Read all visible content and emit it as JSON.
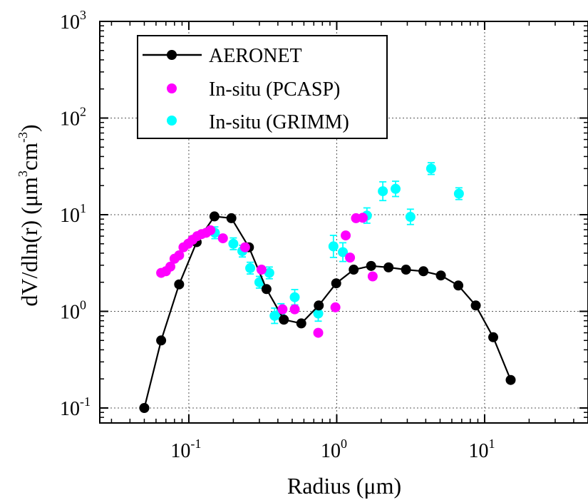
{
  "chart_data": {
    "type": "scatter",
    "title": "",
    "xlabel": "Radius  (μm)",
    "ylabel": {
      "prefix": "dV/dln(r)  (μm",
      "sup1": "3",
      "mid": "cm",
      "sup2": "-3",
      "suffix": ")"
    },
    "x_scale": "log",
    "y_scale": "log",
    "xlim": [
      0.025,
      50
    ],
    "ylim": [
      0.07,
      1000
    ],
    "grid": true,
    "legend_position": "top-left",
    "x_ticks": [
      {
        "value": 0.1,
        "base": "10",
        "exp": "-1"
      },
      {
        "value": 1,
        "base": "10",
        "exp": "0"
      },
      {
        "value": 10,
        "base": "10",
        "exp": "1"
      }
    ],
    "y_ticks": [
      {
        "value": 0.1,
        "base": "10",
        "exp": "-1"
      },
      {
        "value": 1,
        "base": "10",
        "exp": "0"
      },
      {
        "value": 10,
        "base": "10",
        "exp": "1"
      },
      {
        "value": 100,
        "base": "10",
        "exp": "2"
      },
      {
        "value": 1000,
        "base": "10",
        "exp": "3"
      }
    ],
    "series": [
      {
        "name": "AERONET",
        "style": "line-marker",
        "color": "#000000",
        "x": [
          0.05,
          0.065,
          0.086,
          0.113,
          0.149,
          0.194,
          0.255,
          0.335,
          0.439,
          0.576,
          0.756,
          0.992,
          1.302,
          1.708,
          2.241,
          2.94,
          3.857,
          5.06,
          6.641,
          8.713,
          11.432,
          15.0
        ],
        "y": [
          0.1,
          0.5,
          1.9,
          5.2,
          9.6,
          9.2,
          4.6,
          1.7,
          0.82,
          0.75,
          1.15,
          1.95,
          2.7,
          2.95,
          2.85,
          2.7,
          2.6,
          2.35,
          1.85,
          1.15,
          0.54,
          0.195
        ]
      },
      {
        "name": "In-situ (PCASP)",
        "style": "marker",
        "color": "#ff00ff",
        "x": [
          0.065,
          0.07,
          0.075,
          0.08,
          0.086,
          0.092,
          0.099,
          0.106,
          0.114,
          0.122,
          0.131,
          0.14,
          0.17,
          0.24,
          0.31,
          0.43,
          0.52,
          0.75,
          0.98,
          1.15,
          1.23,
          1.35,
          1.5,
          1.75
        ],
        "y": [
          2.5,
          2.6,
          2.9,
          3.5,
          3.8,
          4.6,
          5.0,
          5.5,
          6.0,
          6.3,
          6.5,
          6.9,
          5.7,
          4.6,
          2.7,
          1.05,
          1.05,
          0.6,
          1.1,
          6.1,
          3.6,
          9.2,
          9.3,
          2.3
        ]
      },
      {
        "name": "In-situ (GRIMM)",
        "style": "marker-errorbar",
        "color": "#00ffff",
        "x": [
          0.15,
          0.2,
          0.23,
          0.26,
          0.3,
          0.35,
          0.38,
          0.42,
          0.52,
          0.75,
          0.95,
          1.1,
          1.6,
          2.05,
          2.5,
          3.15,
          4.35,
          6.7
        ],
        "y": [
          6.5,
          5.0,
          4.2,
          2.8,
          2.0,
          2.5,
          0.9,
          1.0,
          1.4,
          0.95,
          4.7,
          4.1,
          9.8,
          17.5,
          18.5,
          9.5,
          30.0,
          16.5
        ],
        "err": [
          0.15,
          0.15,
          0.15,
          0.15,
          0.15,
          0.15,
          0.2,
          0.2,
          0.2,
          0.2,
          0.3,
          0.25,
          0.2,
          0.25,
          0.2,
          0.2,
          0.15,
          0.15
        ]
      }
    ]
  }
}
